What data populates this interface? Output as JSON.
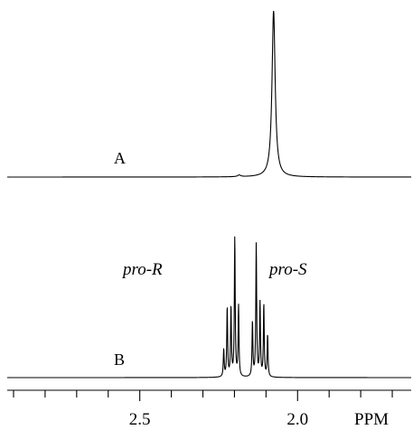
{
  "chart_data": {
    "type": "line",
    "x_axis": {
      "unit": "PPM",
      "reversed": true,
      "range": [
        2.92,
        1.64
      ],
      "major_ticks": [
        2.5,
        2.0
      ],
      "tick_labels": [
        "2.5",
        "2.0"
      ],
      "minor_tick_step": 0.1
    },
    "series": [
      {
        "trace_label": "A",
        "peaks": [
          {
            "ppm": 2.076,
            "height": 1.0,
            "width": 0.006
          },
          {
            "ppm": 2.185,
            "height": 0.01,
            "width": 0.006
          }
        ]
      },
      {
        "trace_label": "B",
        "peaks": [
          {
            "ppm": 2.234,
            "height": 0.19,
            "width": 0.0016
          },
          {
            "ppm": 2.223,
            "height": 0.48,
            "width": 0.0016
          },
          {
            "ppm": 2.211,
            "height": 0.48,
            "width": 0.0016
          },
          {
            "ppm": 2.199,
            "height": 0.96,
            "width": 0.0016
          },
          {
            "ppm": 2.187,
            "height": 0.49,
            "width": 0.0016
          },
          {
            "ppm": 2.143,
            "height": 0.38,
            "width": 0.0016
          },
          {
            "ppm": 2.131,
            "height": 0.92,
            "width": 0.0016
          },
          {
            "ppm": 2.119,
            "height": 0.51,
            "width": 0.0016
          },
          {
            "ppm": 2.107,
            "height": 0.5,
            "width": 0.0016
          },
          {
            "ppm": 2.095,
            "height": 0.29,
            "width": 0.0016
          }
        ]
      }
    ],
    "annotations": [
      {
        "text": "pro-R",
        "style": "italic"
      },
      {
        "text": "pro-S",
        "style": "italic"
      }
    ],
    "grid": false,
    "legend": "none"
  }
}
